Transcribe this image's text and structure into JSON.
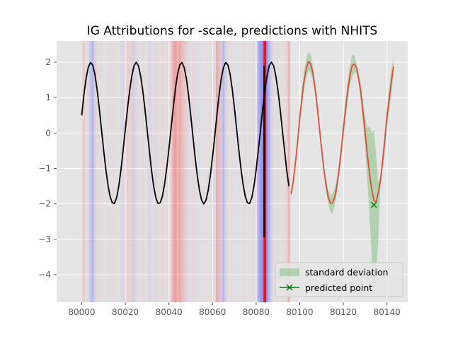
{
  "chart_data": {
    "type": "line",
    "title": "IG Attributions for -scale, predictions with NHITS",
    "xlim": [
      79988.5,
      80149.5
    ],
    "ylim": [
      -4.78,
      2.6
    ],
    "x_ticks": [
      80000,
      80020,
      80040,
      80060,
      80080,
      80100,
      80120,
      80140
    ],
    "x_tick_labels": [
      "80000",
      "80020",
      "80040",
      "80060",
      "80080",
      "80100",
      "80120",
      "80140"
    ],
    "y_ticks": [
      2,
      1,
      0,
      -1,
      -2,
      -3,
      -4
    ],
    "y_tick_labels": [
      "2",
      "1",
      "0",
      "−1",
      "−2",
      "−3",
      "−4"
    ],
    "grid": true,
    "legend_position": "lower right",
    "colors": {
      "background": "#e5e5e5",
      "grid": "#ffffff",
      "input_series": "#000000",
      "prediction_series": "#e24a33",
      "std_band": "#4caf50",
      "predicted_point": "#008000",
      "positive_attribution": "#ff0000",
      "negative_attribution": "#0000ff",
      "marker_line": "#ff0000"
    },
    "series": [
      {
        "role": "input",
        "x": [
          80000,
          80001,
          80002,
          80003,
          80004,
          80005,
          80006,
          80007,
          80008,
          80009,
          80010,
          80011,
          80012,
          80013,
          80014,
          80015,
          80016,
          80017,
          80018,
          80019,
          80020,
          80021,
          80022,
          80023,
          80024,
          80025,
          80026,
          80027,
          80028,
          80029,
          80030,
          80031,
          80032,
          80033,
          80034,
          80035,
          80036,
          80037,
          80038,
          80039,
          80040,
          80041,
          80042,
          80043,
          80044,
          80045,
          80046,
          80047,
          80048,
          80049,
          80050,
          80051,
          80052,
          80053,
          80054,
          80055,
          80056,
          80057,
          80058,
          80059,
          80060,
          80061,
          80062,
          80063,
          80064,
          80065,
          80066,
          80067,
          80068,
          80069,
          80070,
          80071,
          80072,
          80073,
          80074,
          80075,
          80076,
          80077,
          80078,
          80079,
          80080,
          80081,
          80082,
          80083,
          80084,
          80085,
          80086,
          80087,
          80088,
          80089,
          80090,
          80091,
          80092,
          80093,
          80094,
          80095
        ],
        "y": [
          0.5,
          1.07,
          1.54,
          1.85,
          1.99,
          1.93,
          1.68,
          1.26,
          0.73,
          0.14,
          -0.45,
          -0.99,
          -1.45,
          -1.79,
          -1.97,
          -1.99,
          -1.83,
          -1.5,
          -1.04,
          -0.48,
          0.1,
          0.68,
          1.2,
          1.62,
          1.9,
          2.0,
          1.9,
          1.62,
          1.2,
          0.68,
          0.1,
          -0.48,
          -1.04,
          -1.5,
          -1.83,
          -1.99,
          -1.97,
          -1.79,
          -1.45,
          -0.99,
          -0.45,
          0.14,
          0.73,
          1.26,
          1.68,
          1.93,
          1.99,
          1.85,
          1.54,
          1.07,
          0.5,
          -0.1,
          -0.68,
          -1.2,
          -1.62,
          -1.9,
          -2.0,
          -1.9,
          -1.62,
          -1.2,
          -0.68,
          -0.1,
          0.5,
          1.07,
          1.54,
          1.85,
          1.99,
          1.93,
          1.68,
          1.26,
          0.73,
          0.14,
          -0.45,
          -0.99,
          -1.45,
          -1.79,
          -1.97,
          -1.99,
          -1.83,
          -1.5,
          -1.04,
          -0.48,
          0.1,
          0.68,
          1.2,
          1.62,
          1.9,
          2.0,
          1.9,
          1.62,
          1.2,
          0.68,
          0.1,
          -0.48,
          -1.04,
          -1.5
        ]
      },
      {
        "role": "prediction",
        "x": [
          80096,
          80097,
          80098,
          80099,
          80100,
          80101,
          80102,
          80103,
          80104,
          80105,
          80106,
          80107,
          80108,
          80109,
          80110,
          80111,
          80112,
          80113,
          80114,
          80115,
          80116,
          80117,
          80118,
          80119,
          80120,
          80121,
          80122,
          80123,
          80124,
          80125,
          80126,
          80127,
          80128,
          80129,
          80130,
          80131,
          80132,
          80133,
          80134,
          80135,
          80136,
          80137,
          80138,
          80139,
          80140,
          80141,
          80142,
          80143
        ],
        "y": [
          -1.72,
          -1.38,
          -0.85,
          -0.25,
          0.42,
          1.0,
          1.48,
          1.82,
          2.02,
          1.95,
          1.7,
          1.28,
          0.75,
          0.15,
          -0.45,
          -1.0,
          -1.45,
          -1.8,
          -1.98,
          -1.98,
          -1.82,
          -1.5,
          -1.04,
          -0.5,
          0.1,
          0.68,
          1.2,
          1.62,
          1.9,
          1.95,
          1.85,
          1.55,
          1.15,
          0.6,
          0.0,
          -0.6,
          -1.15,
          -1.6,
          -1.9,
          -1.95,
          -1.7,
          -1.35,
          -0.8,
          -0.2,
          0.45,
          0.95,
          1.45,
          1.88
        ]
      }
    ],
    "std_band": {
      "x": [
        80096,
        80097,
        80098,
        80099,
        80100,
        80101,
        80102,
        80103,
        80104,
        80105,
        80106,
        80107,
        80108,
        80109,
        80110,
        80111,
        80112,
        80113,
        80114,
        80115,
        80116,
        80117,
        80118,
        80119,
        80120,
        80121,
        80122,
        80123,
        80124,
        80125,
        80126,
        80127,
        80128,
        80129,
        80130,
        80131,
        80132,
        80133,
        80134,
        80135,
        80136,
        80137,
        80138,
        80139,
        80140,
        80141,
        80142,
        80143
      ],
      "upper": [
        -1.65,
        -1.3,
        -0.75,
        -0.1,
        0.6,
        1.25,
        1.75,
        2.1,
        2.3,
        2.22,
        1.92,
        1.45,
        0.88,
        0.26,
        -0.34,
        -0.88,
        -1.3,
        -1.62,
        -1.75,
        -1.72,
        -1.58,
        -1.3,
        -0.85,
        -0.3,
        0.35,
        0.95,
        1.5,
        1.9,
        2.22,
        2.2,
        2.0,
        1.68,
        1.4,
        0.95,
        0.45,
        0.15,
        0.2,
        0.0,
        0.1,
        -0.6,
        -1.4,
        -1.2,
        -0.6,
        0.1,
        0.75,
        1.3,
        1.8,
        2.15
      ],
      "lower": [
        -1.8,
        -1.46,
        -0.95,
        -0.4,
        0.24,
        0.78,
        1.22,
        1.55,
        1.75,
        1.68,
        1.48,
        1.1,
        0.6,
        0.03,
        -0.56,
        -1.12,
        -1.6,
        -1.98,
        -2.22,
        -2.28,
        -2.05,
        -1.7,
        -1.23,
        -0.7,
        -0.15,
        0.4,
        0.9,
        1.35,
        1.58,
        1.7,
        1.7,
        1.42,
        0.9,
        0.25,
        -0.45,
        -1.35,
        -2.4,
        -3.5,
        -4.5,
        -4.1,
        -3.0,
        -1.5,
        -1.0,
        -0.5,
        0.15,
        0.6,
        1.1,
        1.6
      ]
    },
    "predicted_point": {
      "x": 80134,
      "y": -2.03
    },
    "predicted_index_line": {
      "x": 80084
    },
    "attributions": [
      {
        "x": 80000,
        "w": 0.15
      },
      {
        "x": 80001,
        "w": 0.25
      },
      {
        "x": 80002,
        "w": 0.1
      },
      {
        "x": 80003,
        "w": -0.12
      },
      {
        "x": 80004,
        "w": -0.3
      },
      {
        "x": 80005,
        "w": -0.45
      },
      {
        "x": 80006,
        "w": -0.2
      },
      {
        "x": 80007,
        "w": 0.12
      },
      {
        "x": 80008,
        "w": 0.1
      },
      {
        "x": 80009,
        "w": -0.08
      },
      {
        "x": 80010,
        "w": 0.08
      },
      {
        "x": 80011,
        "w": 0.06
      },
      {
        "x": 80012,
        "w": -0.08
      },
      {
        "x": 80013,
        "w": 0.07
      },
      {
        "x": 80014,
        "w": 0.1
      },
      {
        "x": 80015,
        "w": -0.06
      },
      {
        "x": 80016,
        "w": 0.08
      },
      {
        "x": 80017,
        "w": 0.06
      },
      {
        "x": 80018,
        "w": -0.1
      },
      {
        "x": 80019,
        "w": -0.15
      },
      {
        "x": 80020,
        "w": 0.12
      },
      {
        "x": 80021,
        "w": 0.2
      },
      {
        "x": 80022,
        "w": 0.18
      },
      {
        "x": 80023,
        "w": 0.25
      },
      {
        "x": 80024,
        "w": -0.2
      },
      {
        "x": 80025,
        "w": -0.12
      },
      {
        "x": 80026,
        "w": 0.1
      },
      {
        "x": 80027,
        "w": 0.08
      },
      {
        "x": 80028,
        "w": -0.1
      },
      {
        "x": 80029,
        "w": 0.08
      },
      {
        "x": 80030,
        "w": 0.1
      },
      {
        "x": 80031,
        "w": -0.15
      },
      {
        "x": 80032,
        "w": -0.12
      },
      {
        "x": 80033,
        "w": 0.1
      },
      {
        "x": 80034,
        "w": 0.15
      },
      {
        "x": 80035,
        "w": -0.1
      },
      {
        "x": 80036,
        "w": 0.08
      },
      {
        "x": 80037,
        "w": 0.12
      },
      {
        "x": 80038,
        "w": 0.1
      },
      {
        "x": 80039,
        "w": -0.08
      },
      {
        "x": 80040,
        "w": 0.1
      },
      {
        "x": 80041,
        "w": 0.2
      },
      {
        "x": 80042,
        "w": 0.55
      },
      {
        "x": 80043,
        "w": 0.7
      },
      {
        "x": 80044,
        "w": 0.45
      },
      {
        "x": 80045,
        "w": 0.6
      },
      {
        "x": 80046,
        "w": 0.4
      },
      {
        "x": 80047,
        "w": 0.3
      },
      {
        "x": 80048,
        "w": 0.2
      },
      {
        "x": 80049,
        "w": -0.12
      },
      {
        "x": 80050,
        "w": 0.1
      },
      {
        "x": 80051,
        "w": 0.12
      },
      {
        "x": 80052,
        "w": -0.1
      },
      {
        "x": 80053,
        "w": 0.08
      },
      {
        "x": 80054,
        "w": -0.08
      },
      {
        "x": 80055,
        "w": 0.06
      },
      {
        "x": 80056,
        "w": 0.08
      },
      {
        "x": 80057,
        "w": -0.06
      },
      {
        "x": 80058,
        "w": 0.1
      },
      {
        "x": 80059,
        "w": 0.08
      },
      {
        "x": 80060,
        "w": 0.12
      },
      {
        "x": 80061,
        "w": -0.1
      },
      {
        "x": 80062,
        "w": 0.55
      },
      {
        "x": 80063,
        "w": 0.4
      },
      {
        "x": 80064,
        "w": -0.25
      },
      {
        "x": 80065,
        "w": -0.4
      },
      {
        "x": 80066,
        "w": -0.2
      },
      {
        "x": 80067,
        "w": 0.1
      },
      {
        "x": 80068,
        "w": 0.08
      },
      {
        "x": 80069,
        "w": -0.08
      },
      {
        "x": 80070,
        "w": 0.06
      },
      {
        "x": 80071,
        "w": 0.08
      },
      {
        "x": 80072,
        "w": -0.06
      },
      {
        "x": 80073,
        "w": 0.06
      },
      {
        "x": 80074,
        "w": 0.08
      },
      {
        "x": 80075,
        "w": -0.08
      },
      {
        "x": 80076,
        "w": 0.06
      },
      {
        "x": 80077,
        "w": 0.1
      },
      {
        "x": 80078,
        "w": 0.08
      },
      {
        "x": 80079,
        "w": -0.1
      },
      {
        "x": 80080,
        "w": 0.1
      },
      {
        "x": 80081,
        "w": -0.5
      },
      {
        "x": 80082,
        "w": -0.7
      },
      {
        "x": 80083,
        "w": -0.8
      },
      {
        "x": 80084,
        "w": 0.6
      },
      {
        "x": 80085,
        "w": -0.75
      },
      {
        "x": 80086,
        "w": -0.45
      },
      {
        "x": 80087,
        "w": -0.2
      },
      {
        "x": 80088,
        "w": 0.1
      },
      {
        "x": 80089,
        "w": 0.08
      },
      {
        "x": 80090,
        "w": -0.08
      },
      {
        "x": 80091,
        "w": 0.06
      },
      {
        "x": 80092,
        "w": 0.08
      },
      {
        "x": 80093,
        "w": 0.1
      },
      {
        "x": 80094,
        "w": 0.15
      },
      {
        "x": 80095,
        "w": 0.5
      }
    ],
    "legend": [
      {
        "label": "standard deviation",
        "kind": "patch"
      },
      {
        "label": "predicted point",
        "kind": "marker"
      }
    ]
  }
}
